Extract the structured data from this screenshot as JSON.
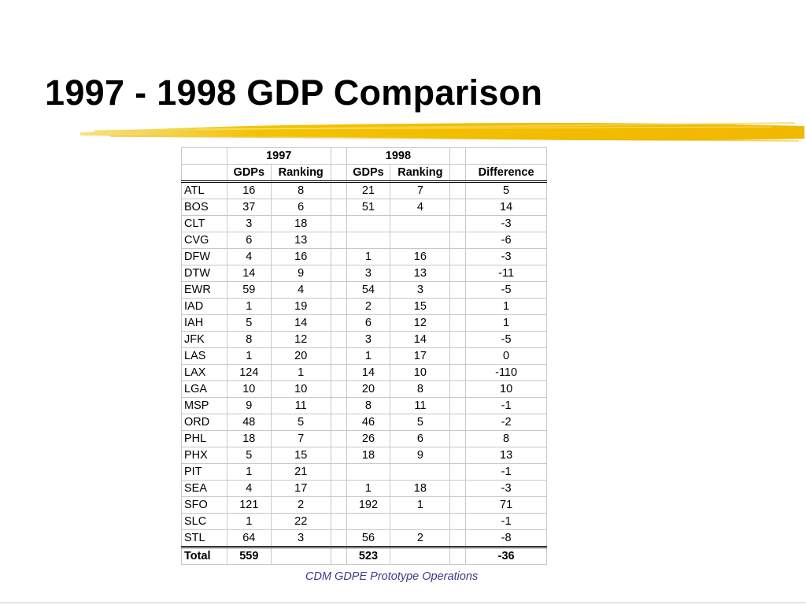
{
  "slide": {
    "title": "1997 - 1998 GDP Comparison",
    "footer": "CDM GDPE Prototype Operations",
    "accent_color": "#f2c200"
  },
  "table": {
    "year_headers": [
      "1997",
      "1998"
    ],
    "col_headers": [
      "GDPs",
      "Ranking",
      "GDPs",
      "Ranking",
      "Difference"
    ],
    "rows": [
      {
        "code": "ATL",
        "g97": "16",
        "r97": "8",
        "g98": "21",
        "r98": "7",
        "diff": "5"
      },
      {
        "code": "BOS",
        "g97": "37",
        "r97": "6",
        "g98": "51",
        "r98": "4",
        "diff": "14"
      },
      {
        "code": "CLT",
        "g97": "3",
        "r97": "18",
        "g98": "",
        "r98": "",
        "diff": "-3"
      },
      {
        "code": "CVG",
        "g97": "6",
        "r97": "13",
        "g98": "",
        "r98": "",
        "diff": "-6"
      },
      {
        "code": "DFW",
        "g97": "4",
        "r97": "16",
        "g98": "1",
        "r98": "16",
        "diff": "-3"
      },
      {
        "code": "DTW",
        "g97": "14",
        "r97": "9",
        "g98": "3",
        "r98": "13",
        "diff": "-11"
      },
      {
        "code": "EWR",
        "g97": "59",
        "r97": "4",
        "g98": "54",
        "r98": "3",
        "diff": "-5"
      },
      {
        "code": "IAD",
        "g97": "1",
        "r97": "19",
        "g98": "2",
        "r98": "15",
        "diff": "1"
      },
      {
        "code": "IAH",
        "g97": "5",
        "r97": "14",
        "g98": "6",
        "r98": "12",
        "diff": "1"
      },
      {
        "code": "JFK",
        "g97": "8",
        "r97": "12",
        "g98": "3",
        "r98": "14",
        "diff": "-5"
      },
      {
        "code": "LAS",
        "g97": "1",
        "r97": "20",
        "g98": "1",
        "r98": "17",
        "diff": "0"
      },
      {
        "code": "LAX",
        "g97": "124",
        "r97": "1",
        "g98": "14",
        "r98": "10",
        "diff": "-110"
      },
      {
        "code": "LGA",
        "g97": "10",
        "r97": "10",
        "g98": "20",
        "r98": "8",
        "diff": "10"
      },
      {
        "code": "MSP",
        "g97": "9",
        "r97": "11",
        "g98": "8",
        "r98": "11",
        "diff": "-1"
      },
      {
        "code": "ORD",
        "g97": "48",
        "r97": "5",
        "g98": "46",
        "r98": "5",
        "diff": "-2"
      },
      {
        "code": "PHL",
        "g97": "18",
        "r97": "7",
        "g98": "26",
        "r98": "6",
        "diff": "8"
      },
      {
        "code": "PHX",
        "g97": "5",
        "r97": "15",
        "g98": "18",
        "r98": "9",
        "diff": "13"
      },
      {
        "code": "PIT",
        "g97": "1",
        "r97": "21",
        "g98": "",
        "r98": "",
        "diff": "-1"
      },
      {
        "code": "SEA",
        "g97": "4",
        "r97": "17",
        "g98": "1",
        "r98": "18",
        "diff": "-3"
      },
      {
        "code": "SFO",
        "g97": "121",
        "r97": "2",
        "g98": "192",
        "r98": "1",
        "diff": "71"
      },
      {
        "code": "SLC",
        "g97": "1",
        "r97": "22",
        "g98": "",
        "r98": "",
        "diff": "-1"
      },
      {
        "code": "STL",
        "g97": "64",
        "r97": "3",
        "g98": "56",
        "r98": "2",
        "diff": "-8"
      }
    ],
    "total": {
      "label": "Total",
      "g97": "559",
      "r97": "",
      "g98": "523",
      "r98": "",
      "diff": "-36"
    }
  }
}
